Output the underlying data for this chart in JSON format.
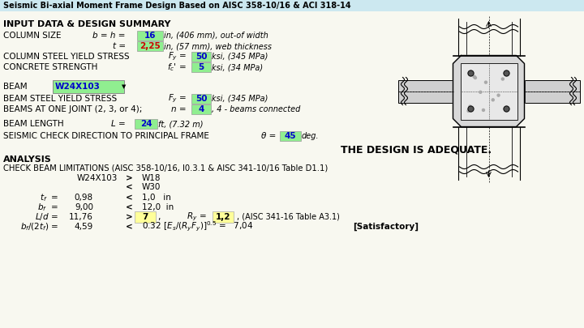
{
  "title": "Seismic Bi-axial Moment Frame Design Based on AISC 358-10/16 & ACI 318-14",
  "title_bg": "#cce8f0",
  "bg_color": "#f0f0e0",
  "white_bg": "#ffffff",
  "green_bg": "#90EE90",
  "yellow_bg": "#FFFF99",
  "header_section": "INPUT DATA & DESIGN SUMMARY",
  "adequate_text": "THE DESIGN IS ADEQUATE.",
  "analysis_header": "ANALYSIS",
  "check_text": "CHECK BEAM LIMITATIONS (AISC 358-10/16, I0.3.1 & AISC 341-10/16 Table D1.1)"
}
